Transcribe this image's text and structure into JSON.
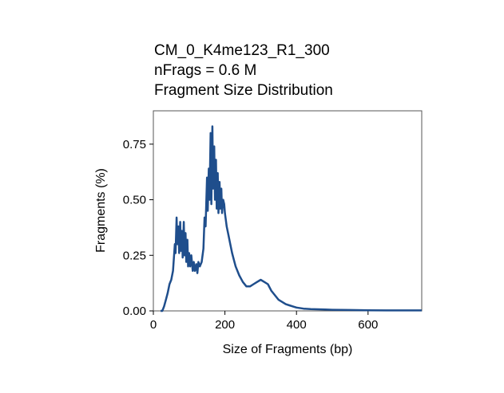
{
  "chart_data": {
    "type": "line",
    "title_lines": [
      "CM_0_K4me123_R1_300",
      "nFrags = 0.6 M",
      "Fragment Size Distribution"
    ],
    "xlabel": "Size of Fragments (bp)",
    "ylabel": "Fragments (%)",
    "xlim": [
      0,
      750
    ],
    "ylim": [
      0,
      0.9
    ],
    "x_ticks": [
      0,
      200,
      400,
      600
    ],
    "y_ticks": [
      0.0,
      0.25,
      0.5,
      0.75
    ],
    "x_tick_labels": [
      "0",
      "200",
      "400",
      "600"
    ],
    "y_tick_labels": [
      "0.00",
      "0.25",
      "0.50",
      "0.75"
    ],
    "grid": false,
    "line_color": "#1f4e8c",
    "series": [
      {
        "x": [
          20,
          25,
          30,
          35,
          40,
          45,
          50,
          55,
          60,
          62,
          65,
          67,
          70,
          72,
          75,
          77,
          80,
          82,
          85,
          87,
          90,
          92,
          95,
          97,
          100,
          103,
          106,
          110,
          113,
          116,
          120,
          123,
          126,
          130,
          135,
          140,
          143,
          146,
          150,
          152,
          155,
          157,
          160,
          162,
          165,
          167,
          170,
          172,
          175,
          177,
          180,
          182,
          185,
          187,
          190,
          192,
          195,
          198,
          200,
          205,
          210,
          215,
          220,
          225,
          230,
          240,
          250,
          260,
          270,
          280,
          290,
          300,
          310,
          320,
          330,
          340,
          350,
          360,
          370,
          380,
          390,
          400,
          420,
          440,
          460,
          480,
          500,
          550,
          600,
          650,
          700,
          750
        ],
        "y": [
          0.0,
          0.0,
          0.02,
          0.05,
          0.08,
          0.12,
          0.14,
          0.18,
          0.3,
          0.26,
          0.42,
          0.3,
          0.38,
          0.26,
          0.4,
          0.27,
          0.36,
          0.24,
          0.4,
          0.25,
          0.35,
          0.22,
          0.32,
          0.2,
          0.26,
          0.2,
          0.25,
          0.18,
          0.22,
          0.18,
          0.21,
          0.17,
          0.22,
          0.2,
          0.22,
          0.28,
          0.42,
          0.38,
          0.6,
          0.45,
          0.64,
          0.5,
          0.8,
          0.48,
          0.83,
          0.55,
          0.74,
          0.5,
          0.68,
          0.46,
          0.62,
          0.44,
          0.58,
          0.46,
          0.55,
          0.44,
          0.5,
          0.48,
          0.44,
          0.38,
          0.34,
          0.3,
          0.26,
          0.23,
          0.2,
          0.16,
          0.13,
          0.11,
          0.11,
          0.12,
          0.13,
          0.14,
          0.13,
          0.12,
          0.09,
          0.07,
          0.05,
          0.04,
          0.03,
          0.025,
          0.02,
          0.015,
          0.01,
          0.008,
          0.007,
          0.006,
          0.005,
          0.004,
          0.003,
          0.002,
          0.002,
          0.002
        ]
      }
    ]
  }
}
